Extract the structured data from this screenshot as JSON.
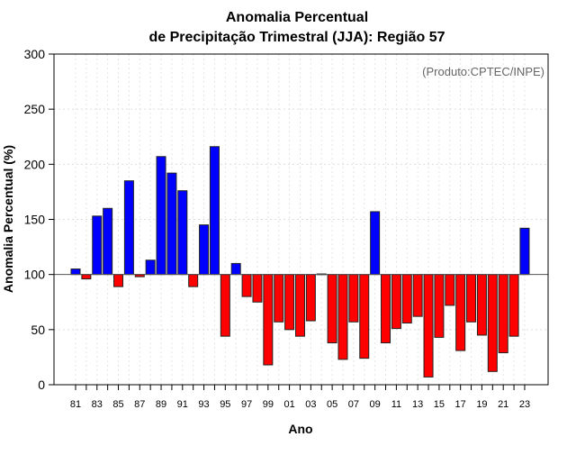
{
  "chart_data": {
    "type": "bar",
    "title_line1": "Anomalia Percentual",
    "title_line2": "de Precipitação Trimestral (JJA): Região 57",
    "annotation": "(Produto:CPTEC/INPE)",
    "xlabel": "Ano",
    "ylabel": "Anomalia Percentual (%)",
    "ylim": [
      0,
      300
    ],
    "baseline": 100,
    "yticks": [
      0,
      50,
      100,
      150,
      200,
      250,
      300
    ],
    "grid": true,
    "above_color": "#0000ff",
    "below_color": "#ff0000",
    "years": [
      1981,
      1982,
      1983,
      1984,
      1985,
      1986,
      1987,
      1988,
      1989,
      1990,
      1991,
      1992,
      1993,
      1994,
      1995,
      1996,
      1997,
      1998,
      1999,
      2000,
      2001,
      2002,
      2003,
      2004,
      2005,
      2006,
      2007,
      2008,
      2009,
      2010,
      2011,
      2012,
      2013,
      2014,
      2015,
      2016,
      2017,
      2018,
      2019,
      2020,
      2021,
      2022,
      2023
    ],
    "values": [
      105,
      96,
      153,
      160,
      89,
      185,
      98,
      113,
      207,
      192,
      176,
      89,
      145,
      216,
      44,
      110,
      80,
      75,
      18,
      57,
      50,
      44,
      58,
      100.5,
      38,
      23,
      57,
      24,
      157,
      38,
      51,
      56,
      62,
      7,
      43,
      72,
      31,
      57,
      45,
      12,
      29,
      44,
      142
    ],
    "xtick_labels": [
      "81",
      "83",
      "85",
      "87",
      "89",
      "91",
      "93",
      "95",
      "97",
      "99",
      "01",
      "03",
      "05",
      "07",
      "09",
      "11",
      "13",
      "15",
      "17",
      "19",
      "21",
      "23"
    ]
  }
}
